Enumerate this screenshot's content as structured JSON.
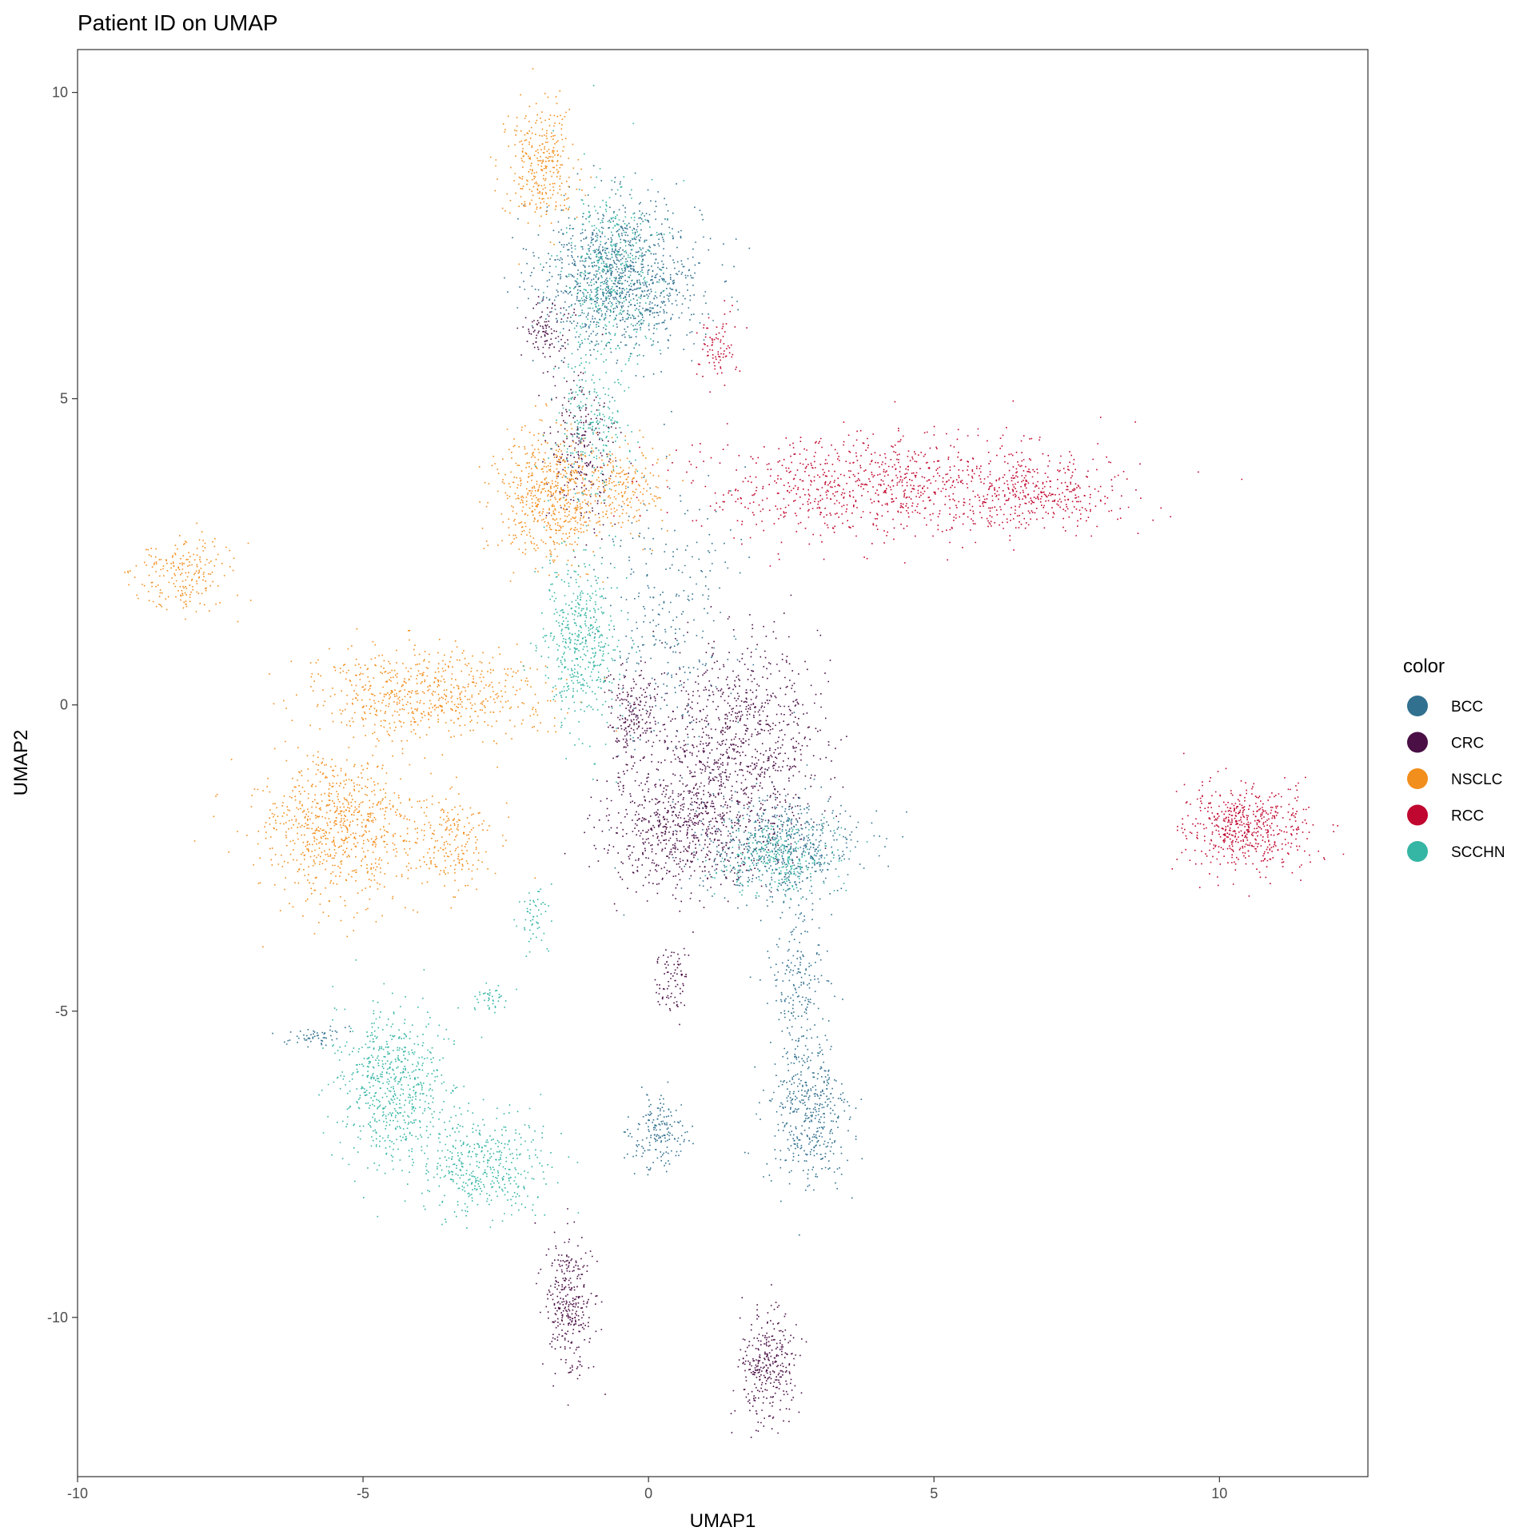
{
  "chart_data": {
    "type": "scatter",
    "title": "Patient ID on UMAP",
    "xlabel": "UMAP1",
    "ylabel": "UMAP2",
    "xlim": [
      -10,
      12.6
    ],
    "ylim": [
      -12.6,
      10.7
    ],
    "xticks": [
      -10,
      -5,
      0,
      5,
      10
    ],
    "yticks": [
      -10,
      -5,
      0,
      5,
      10
    ],
    "xtick_labels": [
      "-10",
      "-5",
      "0",
      "5",
      "10"
    ],
    "ytick_labels": [
      "-10",
      "-5",
      "0",
      "5",
      "10"
    ],
    "grid": false,
    "legend": {
      "title": "color",
      "position": "right"
    },
    "series": [
      {
        "name": "BCC",
        "color": "#31708f",
        "clusters": [
          {
            "x": -0.5,
            "y": 7.0,
            "sx": 0.7,
            "sy": 0.6,
            "w": 1.6
          },
          {
            "x": 2.3,
            "y": -2.3,
            "sx": 0.7,
            "sy": 0.4,
            "w": 0.9
          },
          {
            "x": 2.8,
            "y": -6.7,
            "sx": 0.35,
            "sy": 0.6,
            "w": 0.6
          },
          {
            "x": 0.2,
            "y": -7.0,
            "sx": 0.25,
            "sy": 0.3,
            "w": 0.25
          },
          {
            "x": 2.6,
            "y": -4.5,
            "sx": 0.25,
            "sy": 0.7,
            "w": 0.3
          },
          {
            "x": -5.8,
            "y": -5.4,
            "sx": 0.25,
            "sy": 0.08,
            "w": 0.08
          },
          {
            "x": 0.3,
            "y": 1.5,
            "sx": 0.6,
            "sy": 1.2,
            "w": 0.4
          }
        ]
      },
      {
        "name": "CRC",
        "color": "#4a0f45",
        "clusters": [
          {
            "x": 1.6,
            "y": -0.6,
            "sx": 0.7,
            "sy": 0.8,
            "w": 1.3
          },
          {
            "x": 0.5,
            "y": -2.0,
            "sx": 0.7,
            "sy": 0.5,
            "w": 0.9
          },
          {
            "x": -1.4,
            "y": -9.8,
            "sx": 0.2,
            "sy": 0.55,
            "w": 0.45
          },
          {
            "x": 2.1,
            "y": -10.8,
            "sx": 0.25,
            "sy": 0.45,
            "w": 0.45
          },
          {
            "x": 0.4,
            "y": -4.5,
            "sx": 0.15,
            "sy": 0.3,
            "w": 0.12
          },
          {
            "x": -1.2,
            "y": 4.2,
            "sx": 0.3,
            "sy": 0.6,
            "w": 0.35
          },
          {
            "x": -1.8,
            "y": 6.1,
            "sx": 0.2,
            "sy": 0.3,
            "w": 0.15
          },
          {
            "x": -0.3,
            "y": -0.2,
            "sx": 0.25,
            "sy": 0.4,
            "w": 0.3
          }
        ]
      },
      {
        "name": "NSCLC",
        "color": "#f28e1c",
        "clusters": [
          {
            "x": -1.9,
            "y": 8.8,
            "sx": 0.3,
            "sy": 0.5,
            "w": 0.45
          },
          {
            "x": -1.7,
            "y": 3.4,
            "sx": 0.5,
            "sy": 0.5,
            "w": 0.9
          },
          {
            "x": -8.2,
            "y": 2.2,
            "sx": 0.45,
            "sy": 0.3,
            "w": 0.3
          },
          {
            "x": -3.9,
            "y": 0.2,
            "sx": 1.0,
            "sy": 0.35,
            "w": 0.9
          },
          {
            "x": -5.5,
            "y": -2.0,
            "sx": 0.7,
            "sy": 0.6,
            "w": 1.1
          },
          {
            "x": -3.5,
            "y": -2.2,
            "sx": 0.4,
            "sy": 0.4,
            "w": 0.3
          },
          {
            "x": -0.4,
            "y": 3.5,
            "sx": 0.35,
            "sy": 0.35,
            "w": 0.25
          }
        ]
      },
      {
        "name": "RCC",
        "color": "#c0072f",
        "clusters": [
          {
            "x": 4.0,
            "y": 3.6,
            "sx": 1.7,
            "sy": 0.45,
            "w": 1.3
          },
          {
            "x": 6.8,
            "y": 3.4,
            "sx": 0.7,
            "sy": 0.25,
            "w": 0.4
          },
          {
            "x": 10.5,
            "y": -2.0,
            "sx": 0.55,
            "sy": 0.35,
            "w": 0.8
          },
          {
            "x": 1.2,
            "y": 5.8,
            "sx": 0.18,
            "sy": 0.3,
            "w": 0.12
          }
        ]
      },
      {
        "name": "SCCHN",
        "color": "#35b5a4",
        "clusters": [
          {
            "x": -1.2,
            "y": 1.0,
            "sx": 0.35,
            "sy": 0.7,
            "w": 0.7
          },
          {
            "x": -0.7,
            "y": 7.0,
            "sx": 0.4,
            "sy": 0.8,
            "w": 0.6
          },
          {
            "x": -4.5,
            "y": -6.2,
            "sx": 0.5,
            "sy": 0.6,
            "w": 0.9
          },
          {
            "x": -2.9,
            "y": -7.5,
            "sx": 0.55,
            "sy": 0.4,
            "w": 0.6
          },
          {
            "x": 2.2,
            "y": -2.5,
            "sx": 0.5,
            "sy": 0.3,
            "w": 0.4
          },
          {
            "x": -2.0,
            "y": -3.5,
            "sx": 0.12,
            "sy": 0.3,
            "w": 0.08
          },
          {
            "x": -2.8,
            "y": -4.8,
            "sx": 0.15,
            "sy": 0.1,
            "w": 0.06
          },
          {
            "x": -1.0,
            "y": 4.5,
            "sx": 0.35,
            "sy": 0.5,
            "w": 0.3
          }
        ]
      }
    ]
  }
}
